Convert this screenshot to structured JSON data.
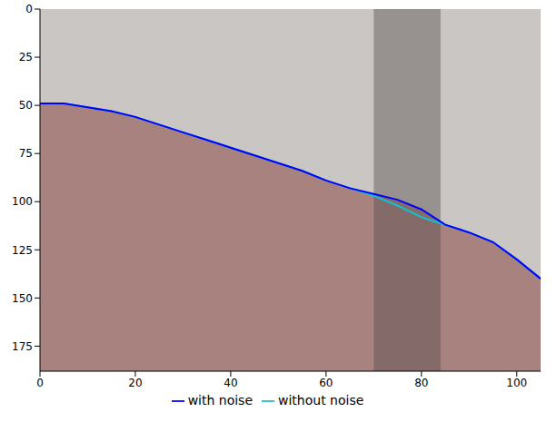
{
  "chart_data": {
    "type": "line",
    "x": [
      0,
      5,
      10,
      15,
      20,
      25,
      30,
      35,
      40,
      45,
      50,
      55,
      60,
      65,
      70,
      75,
      80,
      85,
      90,
      95,
      100,
      105
    ],
    "series": [
      {
        "name": "without noise",
        "color": "#17becf",
        "values": [
          49,
          49,
          51,
          53,
          56,
          60,
          64,
          68,
          72,
          76,
          80,
          84,
          89,
          93,
          97,
          102,
          108,
          112,
          116,
          121,
          130,
          140
        ]
      },
      {
        "name": "with noise",
        "color": "#0000ff",
        "values": [
          49,
          49,
          51,
          53,
          56,
          60,
          64,
          68,
          72,
          76,
          80,
          84,
          89,
          93,
          96,
          99,
          104,
          112,
          116,
          121,
          130,
          140
        ]
      }
    ],
    "noise_band": [
      70,
      84
    ],
    "xlim": [
      0,
      105
    ],
    "ylim": [
      0,
      188
    ],
    "xticks": [
      0,
      20,
      40,
      60,
      80,
      100
    ],
    "yticks": [
      0,
      25,
      50,
      75,
      100,
      125,
      150,
      175
    ],
    "grid": false,
    "legend": "bottom"
  }
}
